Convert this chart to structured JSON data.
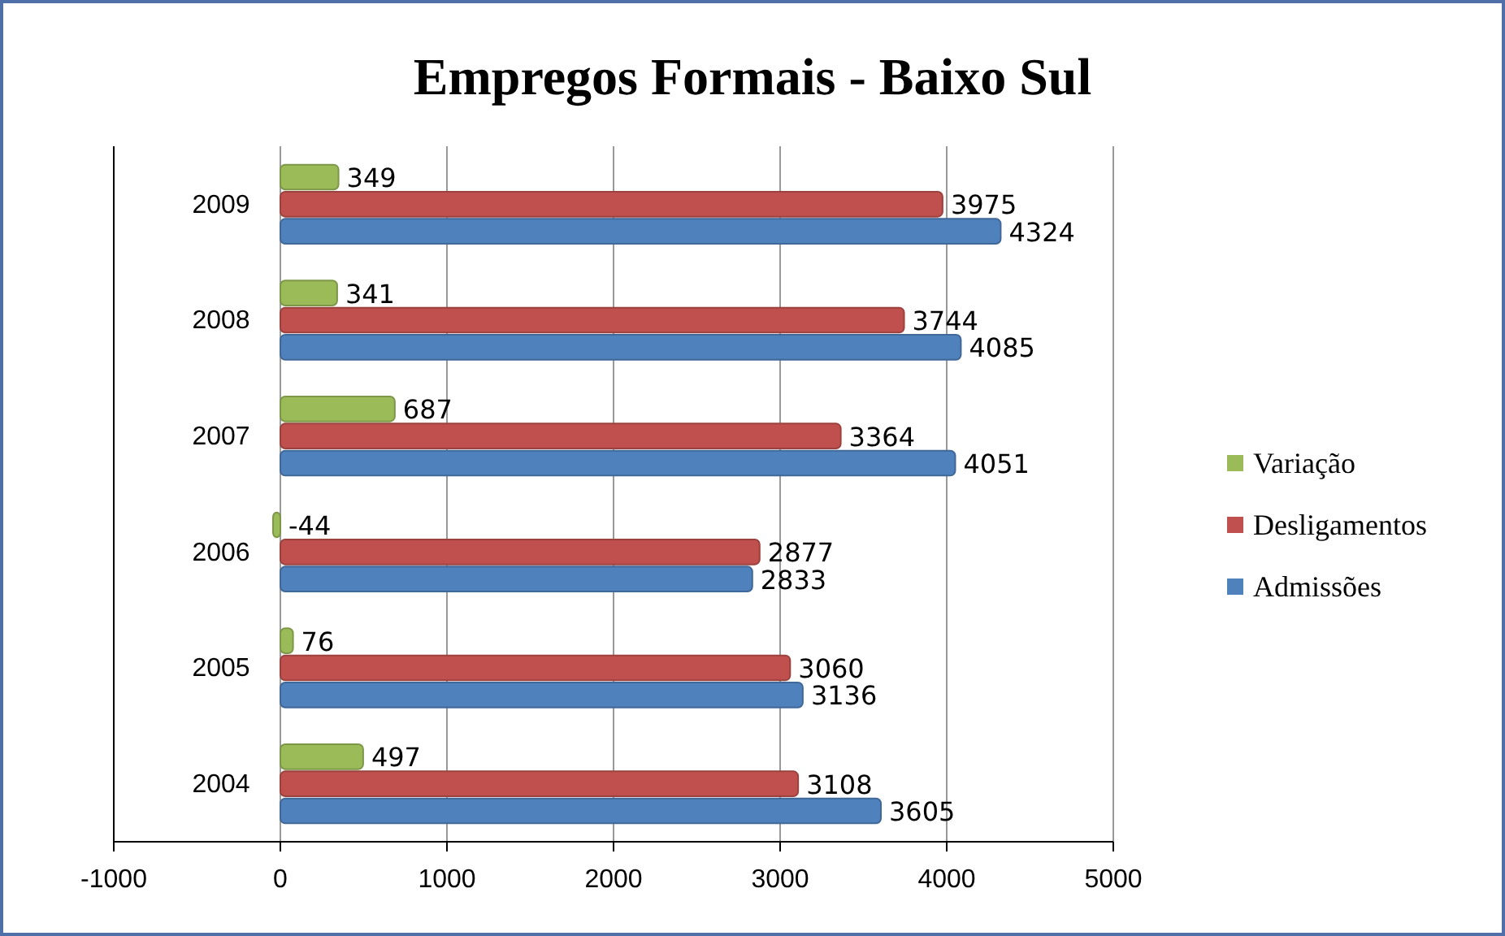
{
  "chart_data": {
    "type": "bar",
    "orientation": "horizontal",
    "title": "Empregos Formais - Baixo Sul",
    "categories": [
      "2009",
      "2008",
      "2007",
      "2006",
      "2005",
      "2004"
    ],
    "series": [
      {
        "name": "Variação",
        "color": "#9bbb59",
        "values": [
          349,
          341,
          687,
          -44,
          76,
          497
        ]
      },
      {
        "name": "Desligamentos",
        "color": "#c0504d",
        "values": [
          3975,
          3744,
          3364,
          2877,
          3060,
          3108
        ]
      },
      {
        "name": "Admissões",
        "color": "#4f81bd",
        "values": [
          4324,
          4085,
          4051,
          2833,
          3136,
          3605
        ]
      }
    ],
    "xlim": [
      -1000,
      5000
    ],
    "xticks": [
      -1000,
      0,
      1000,
      2000,
      3000,
      4000,
      5000
    ],
    "grid": "x",
    "legend": "right",
    "data_labels": true
  }
}
